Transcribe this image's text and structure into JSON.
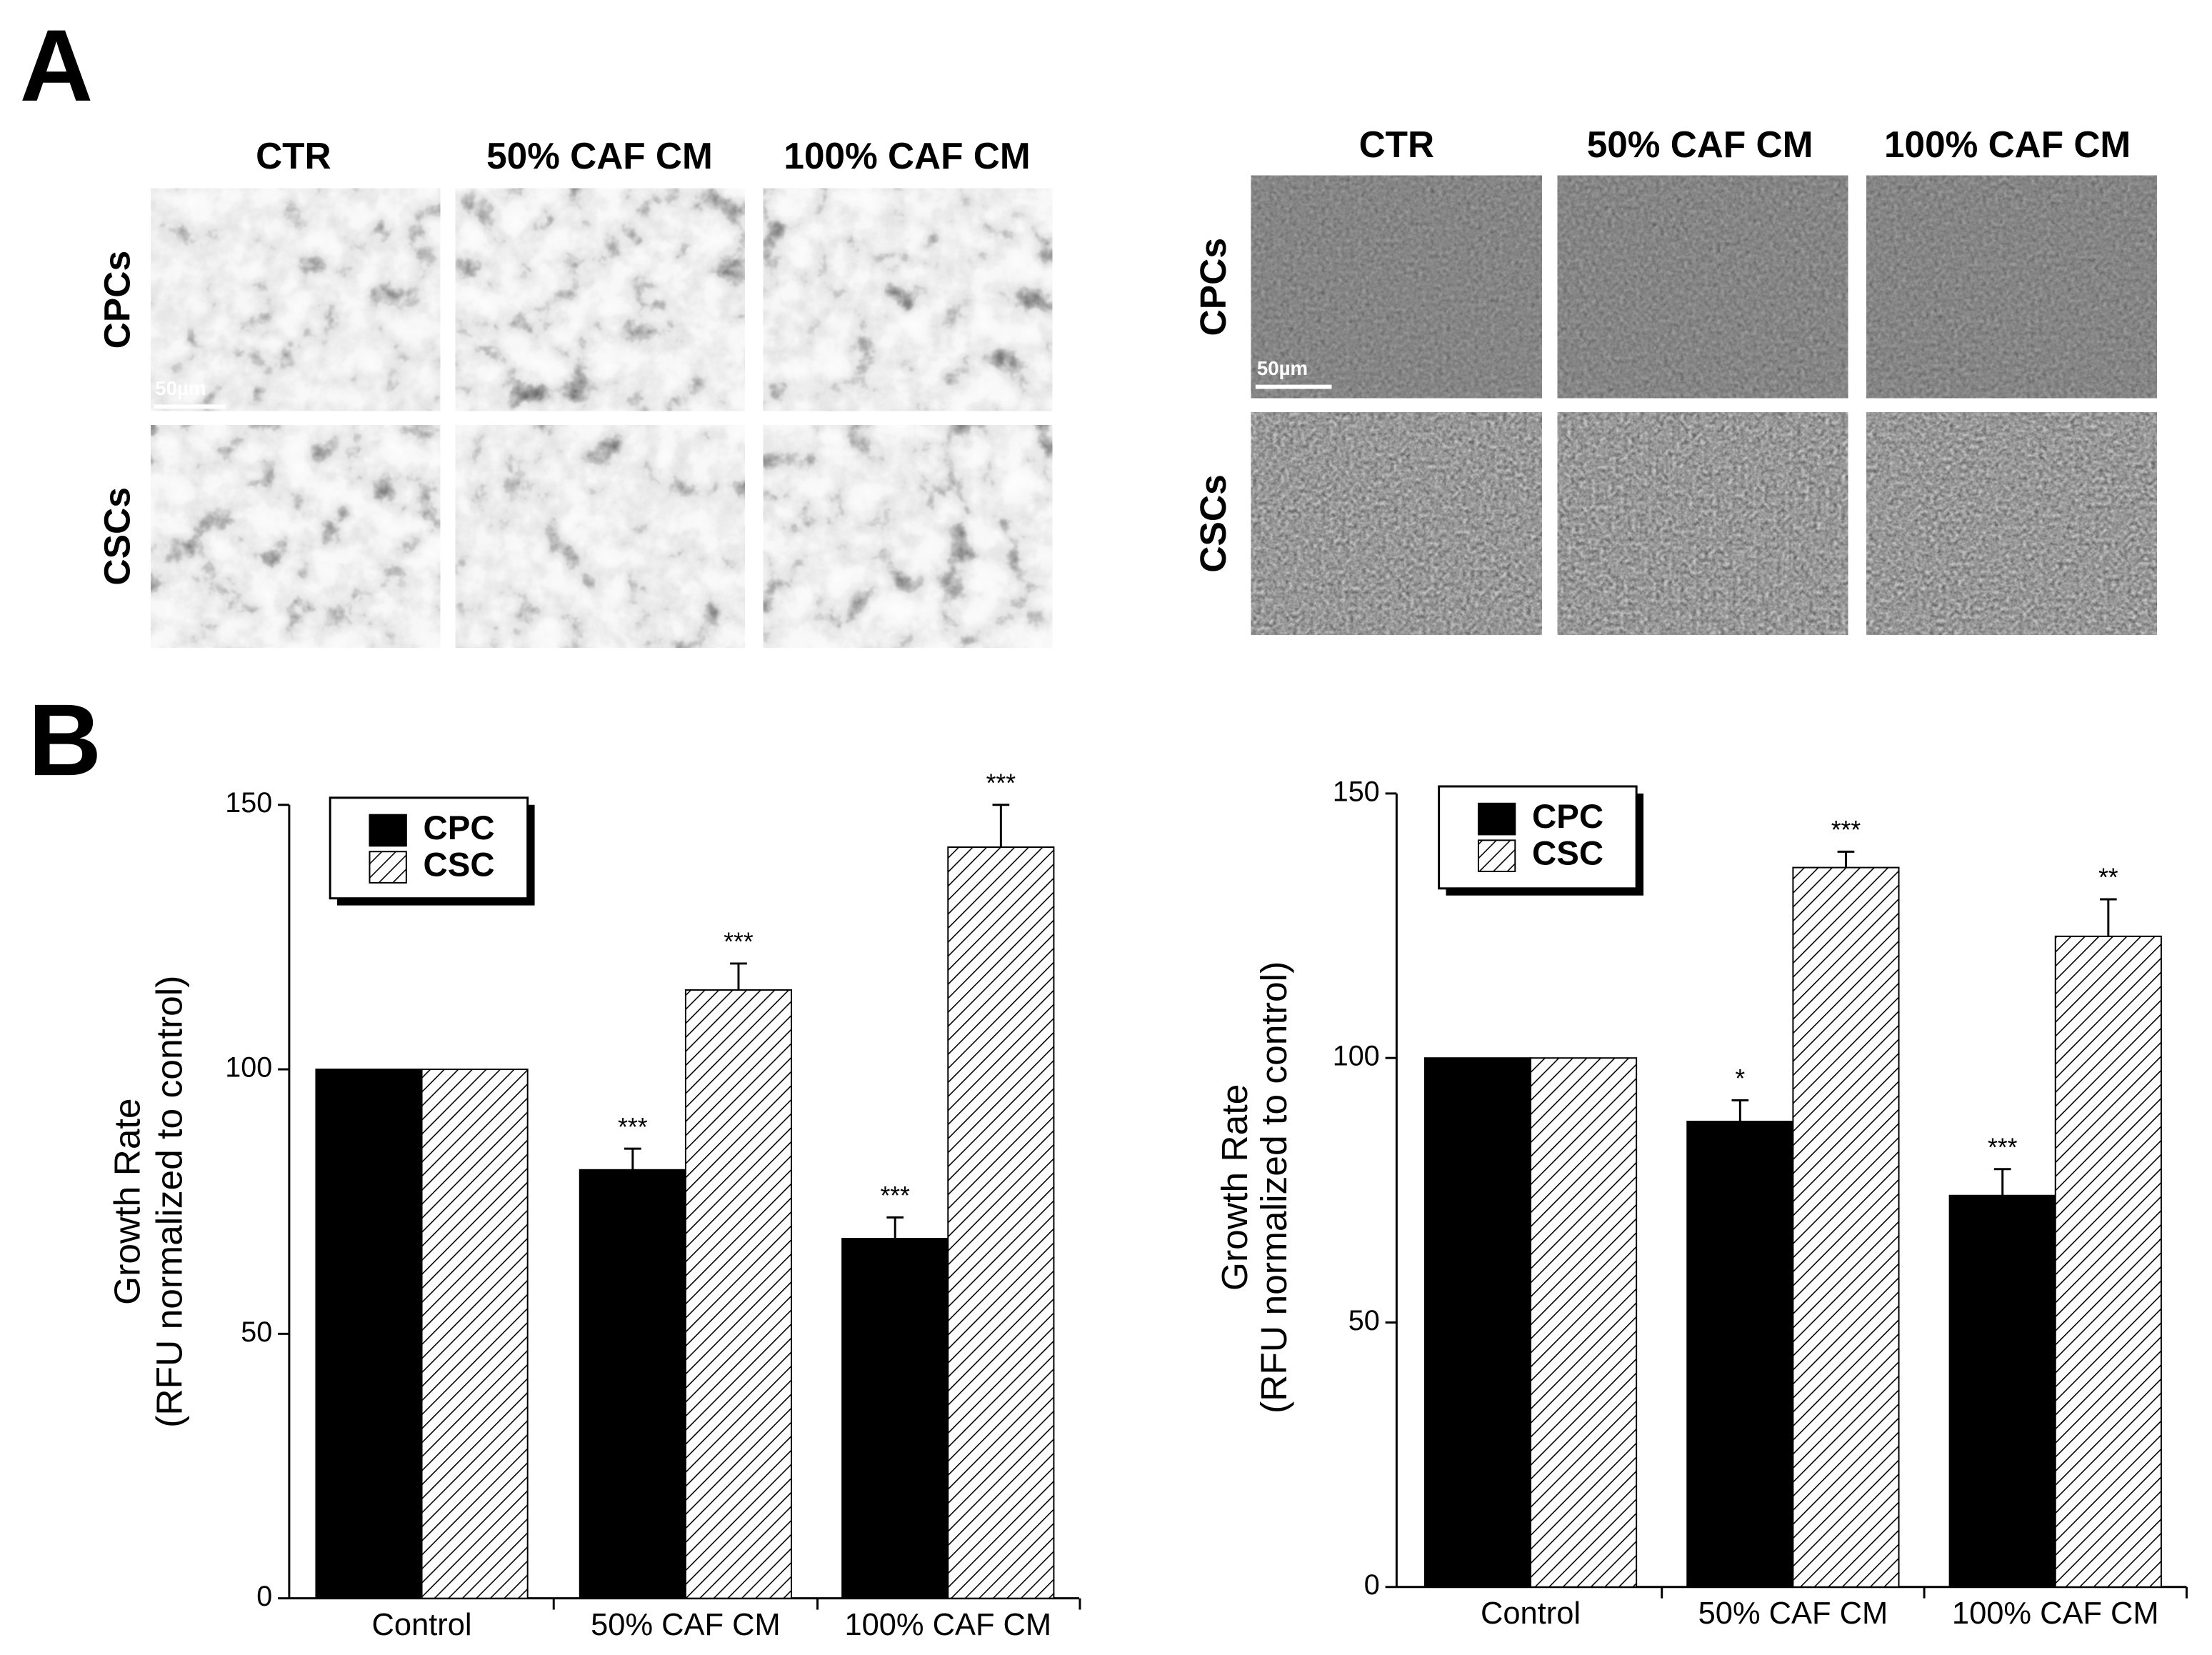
{
  "panel_a": {
    "label": "A",
    "groups": [
      {
        "columns": [
          "CTR",
          "50% CAF CM",
          "100% CAF CM"
        ],
        "rows": [
          "CPCs",
          "CSCs"
        ],
        "scale_bar": "50µm"
      },
      {
        "columns": [
          "CTR",
          "50% CAF CM",
          "100% CAF CM"
        ],
        "rows": [
          "CPCs",
          "CSCs"
        ],
        "scale_bar": "50µm"
      }
    ]
  },
  "panel_b": {
    "label": "B"
  },
  "chart_data": [
    {
      "type": "bar",
      "ylabel": [
        "Growth Rate",
        "(RFU normalized to control)"
      ],
      "categories": [
        "Control",
        "50% CAF CM",
        "100% CAF CM"
      ],
      "series": [
        {
          "name": "CPC",
          "color": "#000000",
          "values": [
            100,
            81,
            68
          ],
          "errors": [
            null,
            4,
            4
          ],
          "significance": [
            null,
            "***",
            "***"
          ]
        },
        {
          "name": "CSC",
          "color": "#000000",
          "pattern": "diagonal",
          "values": [
            100,
            115,
            142
          ],
          "errors": [
            null,
            5,
            8
          ],
          "significance": [
            null,
            "***",
            "***"
          ]
        }
      ],
      "ylim": [
        0,
        150
      ],
      "yticks": [
        0,
        50,
        100,
        150
      ],
      "legend": "top-left"
    },
    {
      "type": "bar",
      "ylabel": [
        "Growth Rate",
        "(RFU normalized to control)"
      ],
      "categories": [
        "Control",
        "50% CAF CM",
        "100% CAF CM"
      ],
      "series": [
        {
          "name": "CPC",
          "color": "#000000",
          "values": [
            100,
            88,
            74
          ],
          "errors": [
            null,
            4,
            5
          ],
          "significance": [
            null,
            "*",
            "***"
          ]
        },
        {
          "name": "CSC",
          "color": "#000000",
          "pattern": "diagonal",
          "values": [
            100,
            136,
            123
          ],
          "errors": [
            null,
            3,
            7
          ],
          "significance": [
            null,
            "***",
            "**"
          ]
        }
      ],
      "ylim": [
        0,
        150
      ],
      "yticks": [
        0,
        50,
        100,
        150
      ],
      "legend": "top-left"
    }
  ]
}
